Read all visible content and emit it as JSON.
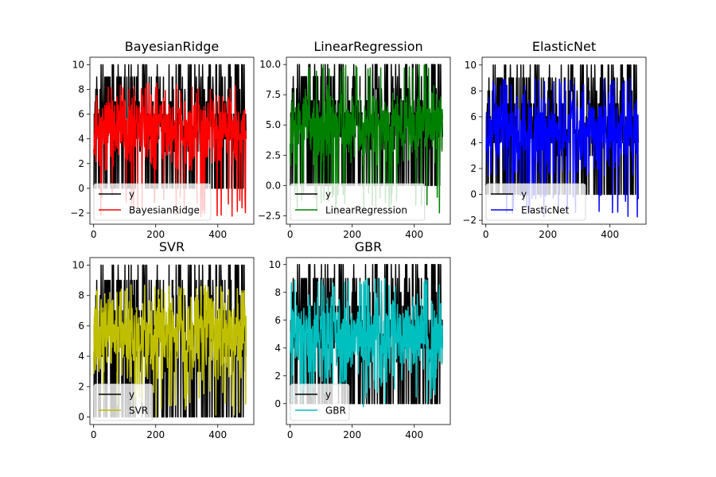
{
  "figure": {
    "background": "#ffffff"
  },
  "chart_data": [
    {
      "type": "line",
      "title": "BayesianRidge",
      "xlabel": "",
      "ylabel": "",
      "xlim": [
        -12,
        516
      ],
      "ylim": [
        -2.9,
        10.6
      ],
      "xticks": [
        "0",
        "200",
        "400"
      ],
      "xtick_values": [
        0,
        200,
        400
      ],
      "yticks": [
        "−2",
        "0",
        "2",
        "4",
        "6",
        "8",
        "10"
      ],
      "ytick_values": [
        -2,
        0,
        2,
        4,
        6,
        8,
        10
      ],
      "legend_position": "lower-left",
      "series": [
        {
          "name": "y",
          "color": "#000000",
          "n_points": 492,
          "min": 0,
          "max": 10,
          "mean": 4.5
        },
        {
          "name": "BayesianRidge",
          "color": "#ff0000",
          "n_points": 492,
          "min": -2.3,
          "max": 8.5,
          "mean": 4.6
        }
      ]
    },
    {
      "type": "line",
      "title": "LinearRegression",
      "xlabel": "",
      "ylabel": "",
      "xlim": [
        -12,
        516
      ],
      "ylim": [
        -3.2,
        10.6
      ],
      "xticks": [
        "0",
        "200",
        "400"
      ],
      "xtick_values": [
        0,
        200,
        400
      ],
      "yticks": [
        "−2.5",
        "0.0",
        "2.5",
        "5.0",
        "7.5",
        "10.0"
      ],
      "ytick_values": [
        -2.5,
        0,
        2.5,
        5,
        7.5,
        10
      ],
      "legend_position": "lower-left",
      "series": [
        {
          "name": "y",
          "color": "#000000",
          "n_points": 492,
          "min": 0,
          "max": 10,
          "mean": 4.5
        },
        {
          "name": "LinearRegression",
          "color": "#008000",
          "n_points": 492,
          "min": -2.4,
          "max": 10.0,
          "mean": 4.8
        }
      ]
    },
    {
      "type": "line",
      "title": "ElasticNet",
      "xlabel": "",
      "ylabel": "",
      "xlim": [
        -12,
        516
      ],
      "ylim": [
        -2.3,
        10.6
      ],
      "xticks": [
        "0",
        "200",
        "400"
      ],
      "xtick_values": [
        0,
        200,
        400
      ],
      "yticks": [
        "−2",
        "0",
        "2",
        "4",
        "6",
        "8",
        "10"
      ],
      "ytick_values": [
        -2,
        0,
        2,
        4,
        6,
        8,
        10
      ],
      "legend_position": "lower-left",
      "series": [
        {
          "name": "y",
          "color": "#000000",
          "n_points": 492,
          "min": 0,
          "max": 10,
          "mean": 4.5
        },
        {
          "name": "ElasticNet",
          "color": "#0000ff",
          "n_points": 492,
          "min": -1.8,
          "max": 9.0,
          "mean": 4.6
        }
      ]
    },
    {
      "type": "line",
      "title": "SVR",
      "xlabel": "",
      "ylabel": "",
      "xlim": [
        -12,
        516
      ],
      "ylim": [
        -0.5,
        10.5
      ],
      "xticks": [
        "0",
        "200",
        "400"
      ],
      "xtick_values": [
        0,
        200,
        400
      ],
      "yticks": [
        "0",
        "2",
        "4",
        "6",
        "8",
        "10"
      ],
      "ytick_values": [
        0,
        2,
        4,
        6,
        8,
        10
      ],
      "legend_position": "lower-left",
      "series": [
        {
          "name": "y",
          "color": "#000000",
          "n_points": 492,
          "min": 0,
          "max": 10,
          "mean": 4.5
        },
        {
          "name": "SVR",
          "color": "#bfbf00",
          "n_points": 492,
          "min": 0,
          "max": 8.7,
          "mean": 5.4
        }
      ]
    },
    {
      "type": "line",
      "title": "GBR",
      "xlabel": "",
      "ylabel": "",
      "xlim": [
        -12,
        516
      ],
      "ylim": [
        -1.5,
        10.5
      ],
      "xticks": [
        "0",
        "200",
        "400"
      ],
      "xtick_values": [
        0,
        200,
        400
      ],
      "yticks": [
        "0",
        "2",
        "4",
        "6",
        "8",
        "10"
      ],
      "ytick_values": [
        0,
        2,
        4,
        6,
        8,
        10
      ],
      "legend_position": "lower-left",
      "series": [
        {
          "name": "y",
          "color": "#000000",
          "n_points": 492,
          "min": 0,
          "max": 10,
          "mean": 4.5
        },
        {
          "name": "GBR",
          "color": "#00bfbf",
          "n_points": 492,
          "min": -0.3,
          "max": 9.0,
          "mean": 4.6
        }
      ]
    }
  ]
}
